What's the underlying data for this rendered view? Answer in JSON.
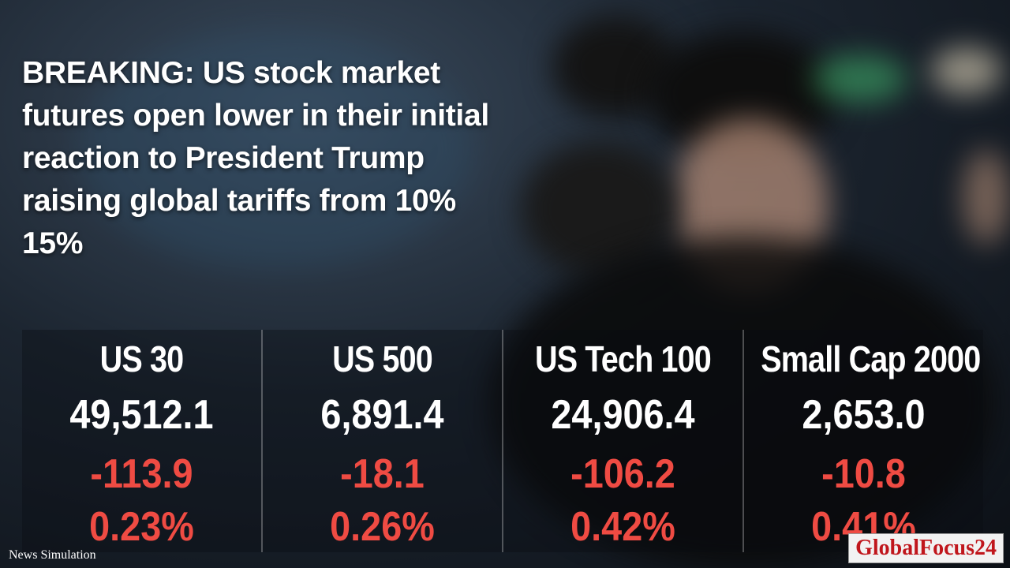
{
  "headline": "BREAKING: US stock market futures open lower in their initial reaction to President Trump raising global tariffs from 10% 15%",
  "indices": [
    {
      "name": "US 30",
      "price": "49,512.1",
      "change": "-113.9",
      "percent": "0.23%"
    },
    {
      "name": "US 500",
      "price": "6,891.4",
      "change": "-18.1",
      "percent": "0.26%"
    },
    {
      "name": "US Tech 100",
      "price": "24,906.4",
      "change": "-106.2",
      "percent": "0.42%"
    },
    {
      "name": "Small Cap 2000",
      "price": "2,653.0",
      "change": "-10.8",
      "percent": "0.41%"
    }
  ],
  "footer": {
    "credit": "News Simulation",
    "brand": "GlobalFocus24"
  }
}
